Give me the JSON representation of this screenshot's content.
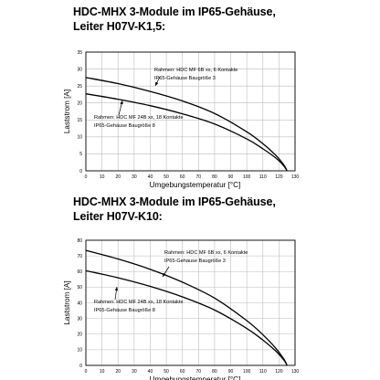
{
  "chart_data": [
    {
      "type": "line",
      "title_line1": "HDC-MHX 3-Module im IP65-Gehäuse,",
      "title_line2": "Leiter H07V-K1,5:",
      "xlabel": "Umgebungstemperatur [°C]",
      "ylabel": "Laststrom [A]",
      "xlim": [
        0,
        130
      ],
      "ylim": [
        0,
        35
      ],
      "xticks": [
        0,
        10,
        20,
        30,
        40,
        50,
        60,
        70,
        80,
        90,
        100,
        110,
        120,
        130
      ],
      "yticks": [
        0,
        5,
        10,
        15,
        20,
        25,
        30,
        35
      ],
      "grid": true,
      "series": [
        {
          "label_line1": "Rahmen: HDC MF 6B xx, 6 Kontakte",
          "label_line2": "IP65-Gehäuse Baugröße 3",
          "x": [
            0,
            20,
            40,
            60,
            80,
            100,
            110,
            118,
            122,
            124,
            125
          ],
          "y": [
            27.5,
            25.7,
            23.4,
            20.6,
            16.9,
            11.5,
            8.0,
            4.6,
            2.4,
            1.0,
            0
          ]
        },
        {
          "label_line1": "Rahmen: HDC MF 24B xx, 18 Kontakte",
          "label_line2": "IP65-Gehäuse Baugröße 8",
          "x": [
            0,
            20,
            40,
            60,
            80,
            100,
            110,
            118,
            122,
            124,
            125
          ],
          "y": [
            22.7,
            21.1,
            19.2,
            16.8,
            13.8,
            9.4,
            6.5,
            3.8,
            2.0,
            0.8,
            0
          ]
        }
      ]
    },
    {
      "type": "line",
      "title_line1": "HDC-MHX 3-Module im IP65-Gehäuse,",
      "title_line2": "Leiter H07V-K10:",
      "xlabel": "Umgebungstemperatur [°C]",
      "ylabel": "Laststrom [A]",
      "xlim": [
        0,
        130
      ],
      "ylim": [
        0,
        80
      ],
      "xticks": [
        0,
        10,
        20,
        30,
        40,
        50,
        60,
        70,
        80,
        90,
        100,
        110,
        120,
        130
      ],
      "yticks": [
        0,
        10,
        20,
        30,
        40,
        50,
        60,
        70,
        80
      ],
      "grid": true,
      "series": [
        {
          "label_line1": "Rahmen: HDC MF 6B xx, 6 Kontakte",
          "label_line2": "IP65-Gehäuse Baugröße 3",
          "x": [
            0,
            20,
            40,
            60,
            80,
            100,
            110,
            118,
            122,
            124,
            125
          ],
          "y": [
            73.5,
            68.0,
            61.4,
            53.2,
            43.0,
            28.6,
            19.6,
            11.0,
            5.6,
            2.4,
            0
          ]
        },
        {
          "label_line1": "Rahmen: HDC MF 24B xx, 18 Kontakte",
          "label_line2": "IP65-Gehäuse Baugröße 8",
          "x": [
            0,
            20,
            40,
            60,
            80,
            100,
            110,
            118,
            122,
            124,
            125
          ],
          "y": [
            60.5,
            56.0,
            50.5,
            43.8,
            35.4,
            23.6,
            16.2,
            9.2,
            4.7,
            2.0,
            0
          ]
        }
      ]
    }
  ]
}
